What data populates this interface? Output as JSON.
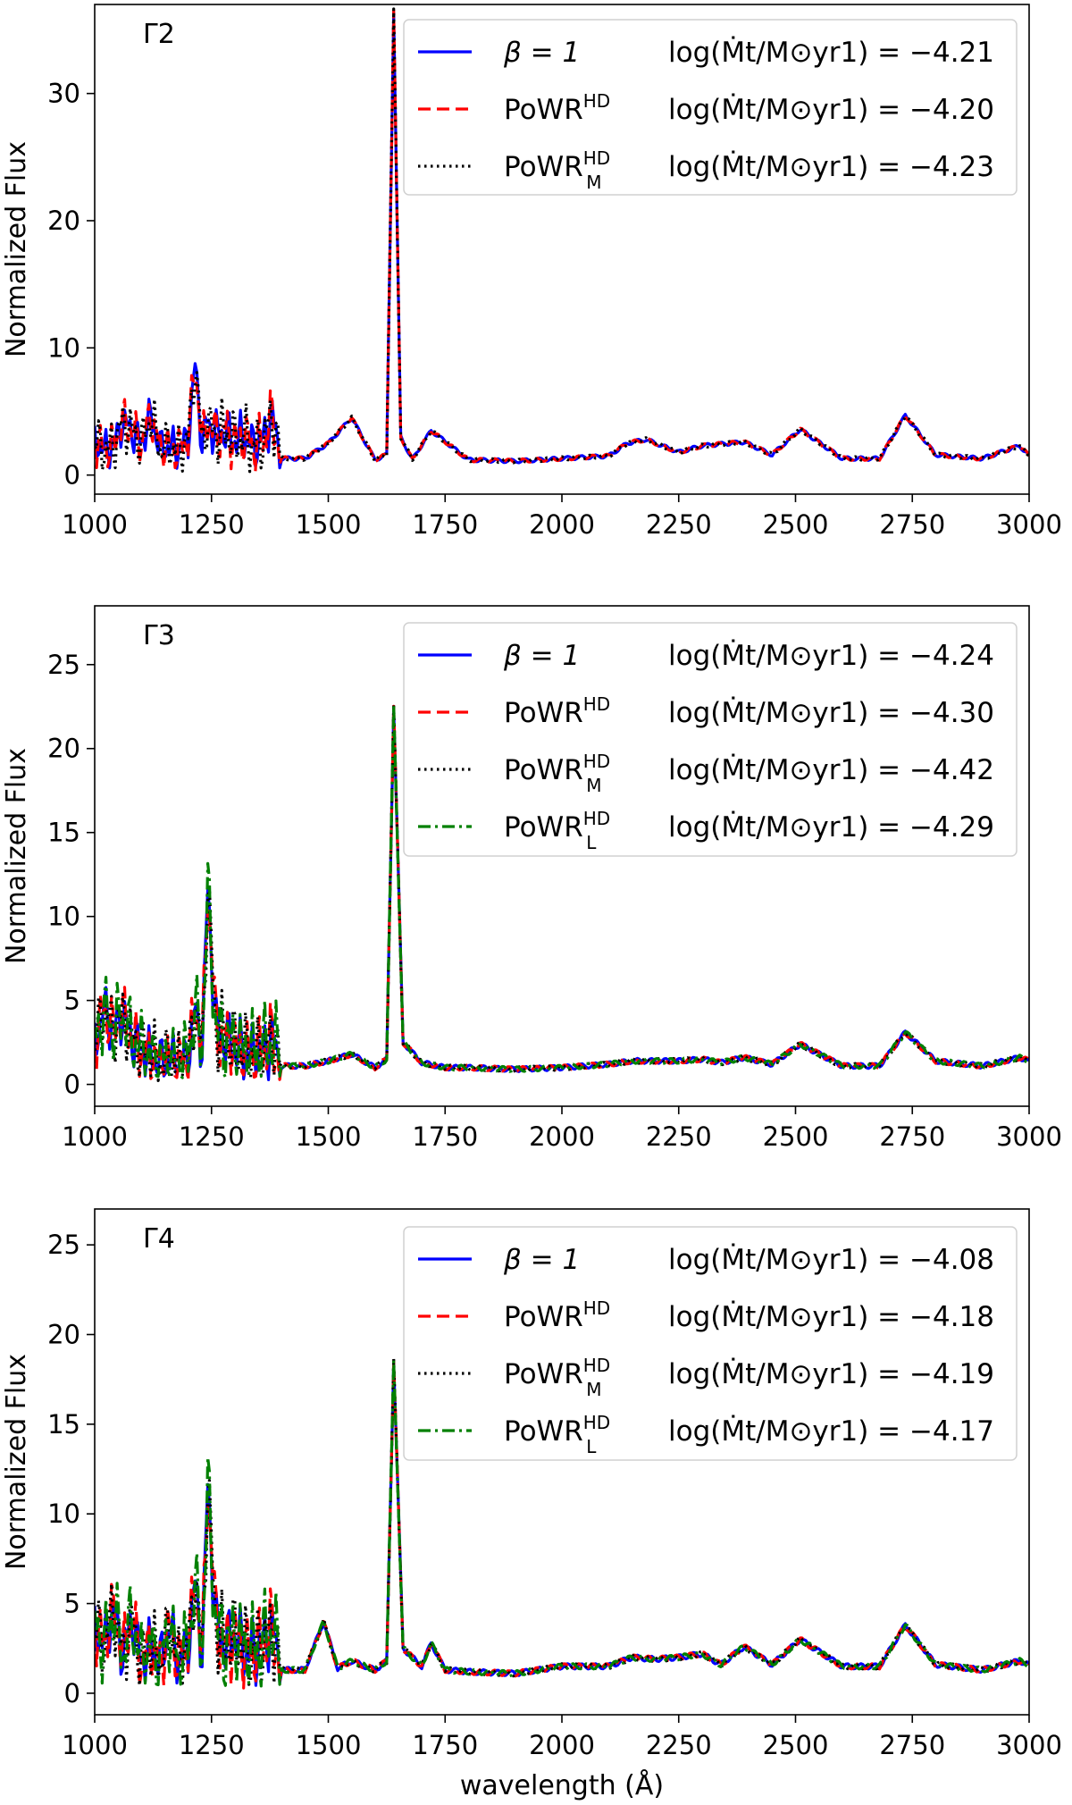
{
  "figure": {
    "xlabel": "wavelength (Å)",
    "ylabel": "Normalized Flux"
  },
  "chart_data": [
    {
      "type": "line",
      "panel": "Γ2",
      "xlim": [
        1000,
        3000
      ],
      "ylim": [
        -1.5,
        37
      ],
      "xticks": [
        1000,
        1250,
        1500,
        1750,
        2000,
        2250,
        2500,
        2750,
        3000
      ],
      "yticks": [
        0,
        10,
        20,
        30
      ],
      "xlabel": "",
      "ylabel": "Normalized Flux",
      "legend_position": "top-right",
      "lines": [
        {
          "x": [
            1000,
            1020,
            1040,
            1060,
            1080,
            1100,
            1120,
            1140,
            1160,
            1180,
            1200,
            1215,
            1230,
            1240,
            1260,
            1280,
            1300,
            1320,
            1340,
            1360,
            1380,
            1400,
            1450,
            1500,
            1550,
            1600,
            1625,
            1640,
            1655,
            1680,
            1720,
            1800,
            1900,
            2000,
            2100,
            2140,
            2180,
            2250,
            2300,
            2390,
            2450,
            2510,
            2600,
            2680,
            2735,
            2800,
            2900,
            2980,
            3000
          ],
          "y": [
            3.0,
            2.3,
            2.6,
            4.5,
            3.8,
            2.8,
            5.0,
            2.4,
            2.6,
            2.3,
            3.2,
            9.0,
            2.8,
            4.5,
            3.5,
            3.8,
            3.0,
            3.4,
            2.6,
            3.0,
            5.0,
            1.3,
            1.3,
            2.5,
            4.5,
            1.2,
            1.6,
            36.5,
            3.0,
            1.2,
            3.5,
            1.2,
            1.1,
            1.3,
            1.5,
            2.5,
            2.8,
            1.8,
            2.3,
            2.6,
            1.6,
            3.6,
            1.3,
            1.3,
            4.7,
            1.6,
            1.3,
            2.3,
            1.5
          ]
        }
      ],
      "series": [
        {
          "name": "β = 1",
          "label": "log(Ṁt/M⊙yr1) = −4.21",
          "color": "#0000ff",
          "dash": "solid",
          "value": -4.21
        },
        {
          "name": "PoWRHD",
          "label": "log(Ṁt/M⊙yr1) = −4.20",
          "color": "#ff0000",
          "dash": "dashed",
          "value": -4.2
        },
        {
          "name": "PoWRMHD",
          "label": "log(Ṁt/M⊙yr1) = −4.23",
          "color": "#000000",
          "dash": "dotted",
          "value": -4.23
        }
      ]
    },
    {
      "type": "line",
      "panel": "Γ3",
      "xlim": [
        1000,
        3000
      ],
      "ylim": [
        -1.3,
        28.5
      ],
      "xticks": [
        1000,
        1250,
        1500,
        1750,
        2000,
        2250,
        2500,
        2750,
        3000
      ],
      "yticks": [
        0,
        5,
        10,
        15,
        20,
        25
      ],
      "xlabel": "",
      "ylabel": "Normalized Flux",
      "legend_position": "top-right",
      "lines": [
        {
          "x": [
            1000,
            1020,
            1040,
            1060,
            1080,
            1100,
            1120,
            1140,
            1160,
            1180,
            1200,
            1215,
            1230,
            1242,
            1260,
            1280,
            1300,
            1330,
            1360,
            1380,
            1400,
            1450,
            1500,
            1550,
            1600,
            1625,
            1640,
            1660,
            1700,
            1750,
            1800,
            1900,
            2000,
            2100,
            2150,
            2200,
            2250,
            2300,
            2340,
            2390,
            2450,
            2510,
            2600,
            2680,
            2735,
            2800,
            2900,
            2980,
            3000
          ],
          "y": [
            2.8,
            4.8,
            3.5,
            4.5,
            3.0,
            2.4,
            2.0,
            1.6,
            1.8,
            1.5,
            2.0,
            4.8,
            2.5,
            12.0,
            3.5,
            3.0,
            2.5,
            2.0,
            2.2,
            3.0,
            1.1,
            1.1,
            1.4,
            1.8,
            1.0,
            1.5,
            22.5,
            2.5,
            1.3,
            1.0,
            1.0,
            0.9,
            1.0,
            1.2,
            1.4,
            1.4,
            1.4,
            1.5,
            1.3,
            1.6,
            1.2,
            2.4,
            1.1,
            1.1,
            3.1,
            1.4,
            1.1,
            1.6,
            1.4
          ]
        }
      ],
      "series": [
        {
          "name": "β = 1",
          "label": "log(Ṁt/M⊙yr1) = −4.24",
          "color": "#0000ff",
          "dash": "solid",
          "value": -4.24
        },
        {
          "name": "PoWRHD",
          "label": "log(Ṁt/M⊙yr1) = −4.30",
          "color": "#ff0000",
          "dash": "dashed",
          "value": -4.3
        },
        {
          "name": "PoWRMHD",
          "label": "log(Ṁt/M⊙yr1) = −4.42",
          "color": "#000000",
          "dash": "dotted",
          "value": -4.42
        },
        {
          "name": "PoWRLHD",
          "label": "log(Ṁt/M⊙yr1) = −4.29",
          "color": "#008000",
          "dash": "dashdot",
          "value": -4.29
        }
      ]
    },
    {
      "type": "line",
      "panel": "Γ4",
      "xlim": [
        1000,
        3000
      ],
      "ylim": [
        -1.2,
        27
      ],
      "xticks": [
        1000,
        1250,
        1500,
        1750,
        2000,
        2250,
        2500,
        2750,
        3000
      ],
      "yticks": [
        0,
        5,
        10,
        15,
        20,
        25
      ],
      "xlabel": "wavelength (Å)",
      "ylabel": "Normalized Flux",
      "legend_position": "top-right",
      "lines": [
        {
          "x": [
            1000,
            1020,
            1040,
            1060,
            1080,
            1100,
            1120,
            1140,
            1160,
            1180,
            1200,
            1215,
            1230,
            1242,
            1260,
            1280,
            1300,
            1330,
            1360,
            1380,
            1400,
            1450,
            1490,
            1520,
            1550,
            1600,
            1625,
            1640,
            1660,
            1700,
            1720,
            1750,
            1800,
            1900,
            2000,
            2100,
            2150,
            2200,
            2250,
            2300,
            2340,
            2390,
            2450,
            2510,
            2600,
            2680,
            2735,
            2800,
            2900,
            2980,
            3000
          ],
          "y": [
            4.0,
            3.0,
            5.0,
            2.5,
            4.5,
            2.0,
            3.0,
            2.0,
            4.0,
            2.0,
            3.0,
            6.5,
            2.5,
            12.0,
            4.0,
            3.0,
            3.5,
            2.5,
            3.0,
            4.0,
            1.3,
            1.3,
            4.0,
            1.4,
            1.8,
            1.3,
            1.8,
            18.5,
            2.5,
            1.5,
            2.8,
            1.3,
            1.2,
            1.1,
            1.5,
            1.5,
            2.0,
            1.9,
            2.0,
            2.2,
            1.6,
            2.6,
            1.6,
            3.0,
            1.5,
            1.5,
            3.8,
            1.6,
            1.3,
            1.8,
            1.6
          ]
        }
      ],
      "series": [
        {
          "name": "β = 1",
          "label": "log(Ṁt/M⊙yr1) = −4.08",
          "color": "#0000ff",
          "dash": "solid",
          "value": -4.08
        },
        {
          "name": "PoWRHD",
          "label": "log(Ṁt/M⊙yr1) = −4.18",
          "color": "#ff0000",
          "dash": "dashed",
          "value": -4.18
        },
        {
          "name": "PoWRMHD",
          "label": "log(Ṁt/M⊙yr1) = −4.19",
          "color": "#000000",
          "dash": "dotted",
          "value": -4.19
        },
        {
          "name": "PoWRLHD",
          "label": "log(Ṁt/M⊙yr1) = −4.17",
          "color": "#008000",
          "dash": "dashdot",
          "value": -4.17
        }
      ]
    }
  ]
}
